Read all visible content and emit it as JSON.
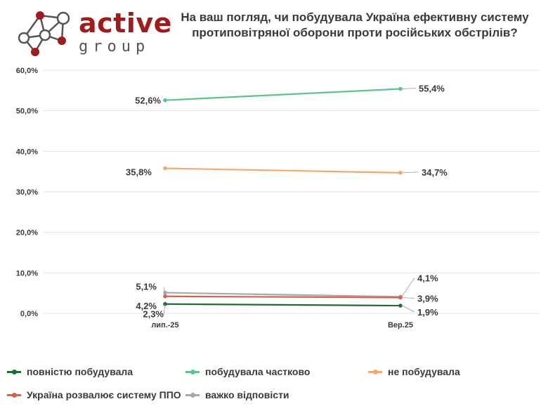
{
  "logo": {
    "word": "active",
    "sub": "group"
  },
  "title": "На ваш погляд, чи побудувала Україна ефективну систему протиповітряної оборони проти російських обстрілів?",
  "colors": {
    "series": [
      "#1f6b3a",
      "#5ec28f",
      "#f4a86a",
      "#d9604f",
      "#a9a9a9"
    ],
    "grid": "#e3e3e3",
    "text": "#3a3a3a",
    "brand": "#9e1b1e"
  },
  "chart_data": {
    "type": "line",
    "categories": [
      "лип.-25",
      "Вер.25"
    ],
    "ylim": [
      0,
      60
    ],
    "yticks": [
      0,
      10,
      20,
      30,
      40,
      50,
      60
    ],
    "ytick_labels": [
      "0,0%",
      "10,0%",
      "20,0%",
      "30,0%",
      "40,0%",
      "50,0%",
      "60,0%"
    ],
    "series": [
      {
        "name": "повністю побудувала",
        "values": [
          2.3,
          1.9
        ],
        "labels": [
          "2,3%",
          "1,9%"
        ]
      },
      {
        "name": "побудувала частково",
        "values": [
          52.6,
          55.4
        ],
        "labels": [
          "52,6%",
          "55,4%"
        ]
      },
      {
        "name": "не побудувала",
        "values": [
          35.8,
          34.7
        ],
        "labels": [
          "35,8%",
          "34,7%"
        ]
      },
      {
        "name": "Україна розвалює систему ППО",
        "values": [
          4.2,
          3.9
        ],
        "labels": [
          "4,2%",
          "3,9%"
        ]
      },
      {
        "name": "важко відповісти",
        "values": [
          5.1,
          4.1
        ],
        "labels": [
          "5,1%",
          "4,1%"
        ]
      }
    ],
    "legend": "bottom"
  }
}
